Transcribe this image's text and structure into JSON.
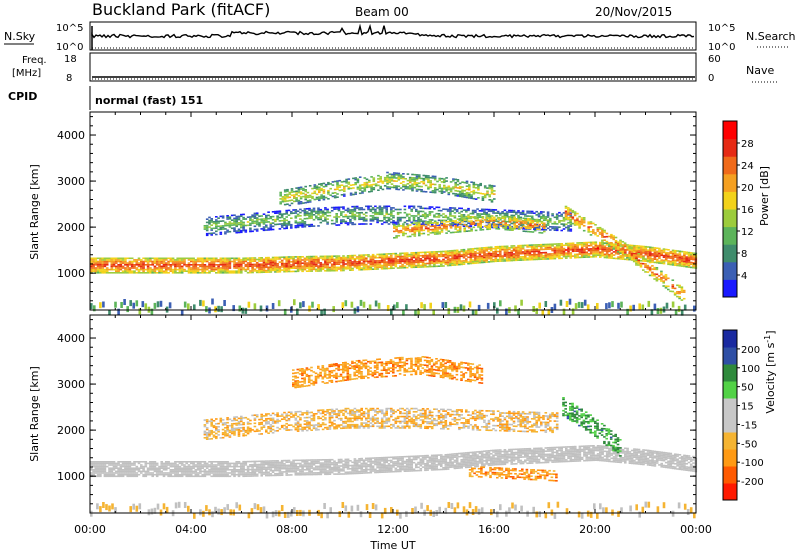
{
  "header": {
    "title": "Buckland Park (fitACF)",
    "beam": "Beam 00",
    "date": "20/Nov/2015"
  },
  "status_panels": {
    "nsky": {
      "label": "N.Sky",
      "ticks": [
        "10^5",
        "10^0"
      ],
      "right_label": "N.Search",
      "right_ticks": [
        "10^5",
        "10^0"
      ]
    },
    "freq": {
      "label_line1": "Freq.",
      "label_line2": "[MHz]",
      "ticks": [
        "18",
        "8"
      ],
      "right_label": "Nave",
      "right_ticks": [
        "60",
        "0"
      ]
    },
    "cpid": {
      "label": "CPID",
      "value": "normal (fast) 151"
    }
  },
  "colors": {
    "power_scale": [
      "#1a1aff",
      "#3b5fb4",
      "#3f8c6c",
      "#5cb45a",
      "#9ccc3c",
      "#f2d21a",
      "#f5a021",
      "#f06a1a",
      "#e62a14",
      "#ff0000"
    ],
    "velocity_scale": [
      "#ff1a00",
      "#ff5a00",
      "#ff9a14",
      "#f5b432",
      "#c8c8c8",
      "#c8c8c8",
      "#52d246",
      "#2f8a3c",
      "#2f4fa5",
      "#1a2aa0"
    ],
    "gray": "#c0c0c0"
  },
  "chart_data": [
    {
      "type": "heatmap",
      "name": "power",
      "title": "",
      "ylabel": "Slant Range [km]",
      "ylim": [
        200,
        4500
      ],
      "yticks": [
        1000,
        2000,
        3000,
        4000
      ],
      "xlim": [
        0,
        24
      ],
      "colorbar": {
        "label": "Power [dB]",
        "ticks": [
          4,
          8,
          12,
          16,
          20,
          24,
          28
        ],
        "range": [
          0,
          32
        ]
      },
      "bands": [
        {
          "t0": 0,
          "t1": 24,
          "rangeCenter": [
            1150,
            1150,
            1150,
            1150,
            1180,
            1200,
            1250,
            1300,
            1400,
            1450,
            1500,
            1400,
            1250
          ],
          "halfWidth": 160,
          "power": 27
        },
        {
          "t0": 4.5,
          "t1": 19,
          "rangeCenter": [
            2000,
            2100,
            2200,
            2250,
            2250,
            2200,
            2150,
            2100
          ],
          "halfWidth": 200,
          "power": 14
        },
        {
          "t0": 7.5,
          "t1": 16,
          "rangeCenter": [
            2600,
            2800,
            3000,
            2900,
            2700
          ],
          "halfWidth": 180,
          "power": 18
        },
        {
          "t0": 12,
          "t1": 18,
          "rangeCenter": [
            1900,
            2000,
            2100,
            2000
          ],
          "halfWidth": 150,
          "power": 24
        },
        {
          "t0": 18.8,
          "t1": 23.5,
          "rangeCenter": [
            2300,
            1900,
            1500,
            1000,
            500
          ],
          "halfWidth": 150,
          "power": 25
        }
      ]
    },
    {
      "type": "heatmap",
      "name": "velocity",
      "title": "",
      "ylabel": "Slant Range [km]",
      "xlabel": "Time UT",
      "ylim": [
        200,
        4500
      ],
      "yticks": [
        1000,
        2000,
        3000,
        4000
      ],
      "xlim": [
        0,
        24
      ],
      "xticks": [
        "00:00",
        "04:00",
        "08:00",
        "12:00",
        "16:00",
        "20:00",
        "00:00"
      ],
      "colorbar": {
        "label": "Velocity [m s^-1]",
        "ticks": [
          200,
          100,
          50,
          15,
          -15,
          -50,
          -100,
          -200
        ]
      },
      "bands": [
        {
          "t0": 0,
          "t1": 24,
          "rangeCenter": [
            1150,
            1150,
            1150,
            1150,
            1180,
            1200,
            1250,
            1300,
            1400,
            1450,
            1500,
            1400,
            1250
          ],
          "halfWidth": 170,
          "velocity": 0
        },
        {
          "t0": 4.5,
          "t1": 18.5,
          "rangeCenter": [
            2000,
            2150,
            2250,
            2250,
            2200,
            2150
          ],
          "halfWidth": 220,
          "velocity": -30
        },
        {
          "t0": 8,
          "t1": 15.5,
          "rangeCenter": [
            3100,
            3300,
            3400,
            3200
          ],
          "halfWidth": 200,
          "velocity": -70
        },
        {
          "t0": 18.7,
          "t1": 21,
          "rangeCenter": [
            2500,
            2100,
            1600
          ],
          "halfWidth": 200,
          "velocity": 60
        },
        {
          "t0": 15,
          "t1": 18.5,
          "rangeCenter": [
            1100,
            1050,
            1000
          ],
          "halfWidth": 120,
          "velocity": -70
        }
      ]
    }
  ]
}
